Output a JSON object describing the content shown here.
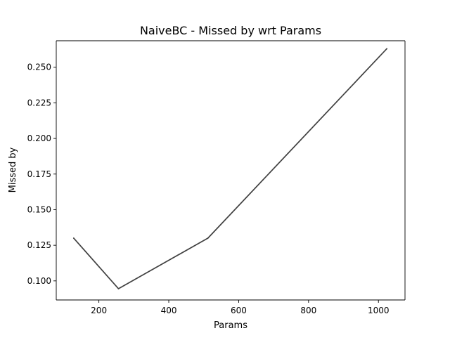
{
  "chart_data": {
    "type": "line",
    "title": "NaiveBC - Missed by wrt Params",
    "xlabel": "Params",
    "ylabel": "Missed by",
    "xlim": [
      78,
      1076
    ],
    "ylim": [
      0.0866,
      0.2686
    ],
    "xticks": [
      200,
      400,
      600,
      800,
      1000
    ],
    "yticks": [
      0.1,
      0.125,
      0.15,
      0.175,
      0.2,
      0.225,
      0.25
    ],
    "xtick_labels": [
      "200",
      "400",
      "600",
      "800",
      "1000"
    ],
    "ytick_labels": [
      "0.100",
      "0.125",
      "0.150",
      "0.175",
      "0.200",
      "0.225",
      "0.250"
    ],
    "grid": false,
    "series": [
      {
        "x": [
          128,
          256,
          512,
          1024
        ],
        "y": [
          0.13,
          0.0945,
          0.13,
          0.263
        ],
        "color": "#404040"
      }
    ]
  }
}
